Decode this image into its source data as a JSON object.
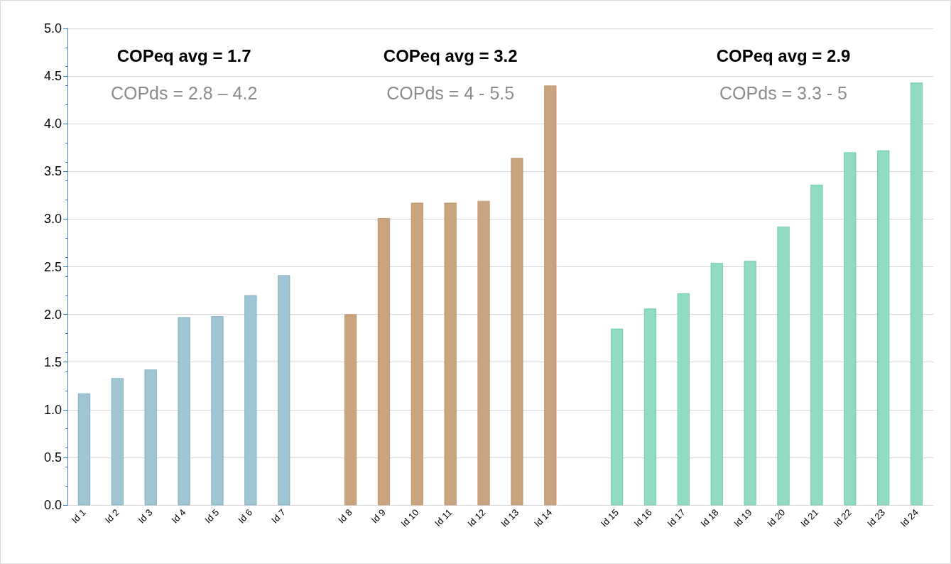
{
  "chart_data": {
    "type": "bar",
    "categories": [
      "Id 1",
      "Id 2",
      "Id 3",
      "Id 4",
      "Id 5",
      "Id 6",
      "Id 7",
      null,
      "Id 8",
      "Id 9",
      "Id 10",
      "Id 11",
      "Id 12",
      "Id 13",
      "Id 14",
      null,
      "Id 15",
      "Id 16",
      "Id 17",
      "Id 18",
      "Id 19",
      "Id 20",
      "Id 21",
      "Id 22",
      "Id 23",
      "Id 24"
    ],
    "series": [
      {
        "color": "#a0c6d3",
        "values": [
          1.17,
          1.33,
          1.42,
          1.97,
          1.98,
          2.2,
          2.41,
          null,
          null,
          null,
          null,
          null,
          null,
          null,
          null,
          null,
          null,
          null,
          null,
          null,
          null,
          null,
          null,
          null,
          null,
          null
        ]
      },
      {
        "color": "#c9a47e",
        "values": [
          null,
          null,
          null,
          null,
          null,
          null,
          null,
          null,
          2.0,
          3.01,
          3.17,
          3.17,
          3.19,
          3.64,
          4.4,
          null,
          null,
          null,
          null,
          null,
          null,
          null,
          null,
          null,
          null,
          null
        ]
      },
      {
        "color": "#91dcc1",
        "values": [
          null,
          null,
          null,
          null,
          null,
          null,
          null,
          null,
          null,
          null,
          null,
          null,
          null,
          null,
          null,
          null,
          1.85,
          2.06,
          2.22,
          2.54,
          2.56,
          2.92,
          3.36,
          3.7,
          3.72,
          4.43
        ]
      }
    ],
    "ylim": [
      0,
      5
    ],
    "yticks": [
      {
        "value": 0,
        "label": "0.0"
      },
      {
        "value": 0.5,
        "label": "0.5"
      },
      {
        "value": 1,
        "label": "1.0"
      },
      {
        "value": 1.5,
        "label": "1.5"
      },
      {
        "value": 2,
        "label": "2.0"
      },
      {
        "value": 2.5,
        "label": "2.5"
      },
      {
        "value": 3,
        "label": "3.0"
      },
      {
        "value": 3.5,
        "label": "3.5"
      },
      {
        "value": 4,
        "label": "4.0"
      },
      {
        "value": 4.5,
        "label": "4.5"
      },
      {
        "value": 5,
        "label": "5.0"
      }
    ],
    "grid": "y",
    "annotations": [
      "COPeq avg = 1.7",
      "COPds = 2.8 – 4.2",
      "COPeq avg = 3.2",
      "COPds = 4 - 5.5",
      "COPeq avg = 2.9",
      "COPds = 3.3 - 5"
    ]
  }
}
